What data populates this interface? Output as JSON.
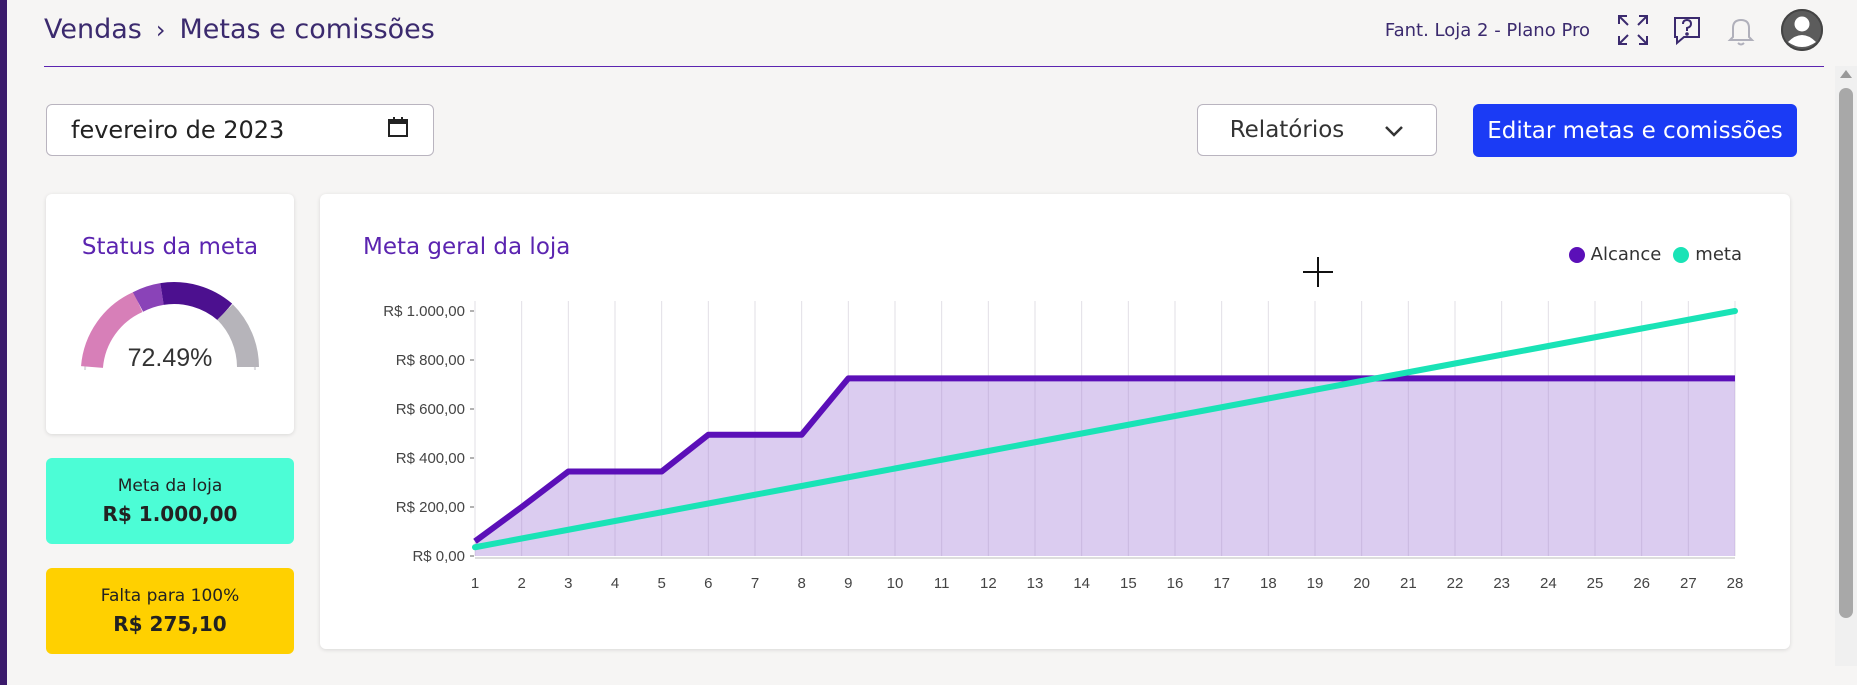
{
  "breadcrumb": {
    "parent": "Vendas",
    "separator": "›",
    "current": "Metas e comissões"
  },
  "header": {
    "store": "Fant. Loja 2 - Plano Pro",
    "icons": [
      "expand-icon",
      "help-icon",
      "bell-icon",
      "user-icon"
    ]
  },
  "toolbar": {
    "date_value": "fevereiro de 2023",
    "reports_label": "Relatórios",
    "edit_label": "Editar metas e comissões"
  },
  "status": {
    "title": "Status da meta",
    "percent_label": "72.49%",
    "percent": 72.49
  },
  "meta_loja": {
    "label": "Meta da loja",
    "value": "R$ 1.000,00"
  },
  "falta": {
    "label": "Falta para 100%",
    "value": "R$ 275,10"
  },
  "chart": {
    "title": "Meta geral da loja"
  },
  "colors": {
    "accent": "#5b24b0",
    "alcance": "#5b0fb8",
    "meta": "#19e3b6",
    "primary_button": "#1b3bf5",
    "meta_card": "#4cfdd6",
    "falta_card": "#ffd000"
  },
  "chart_data": {
    "type": "area",
    "title": "Meta geral da loja",
    "x": [
      1,
      2,
      3,
      4,
      5,
      6,
      7,
      8,
      9,
      10,
      11,
      12,
      13,
      14,
      15,
      16,
      17,
      18,
      19,
      20,
      21,
      22,
      23,
      24,
      25,
      26,
      27,
      28
    ],
    "y_tick_labels": [
      "R$ 0,00",
      "R$ 200,00",
      "R$ 400,00",
      "R$ 600,00",
      "R$ 800,00",
      "R$ 1.000,00"
    ],
    "y_ticks": [
      0,
      200,
      400,
      600,
      800,
      1000
    ],
    "ylim": [
      0,
      1000
    ],
    "grid_x": true,
    "legend_position": "top-right",
    "series": [
      {
        "name": "Alcance",
        "values": [
          60,
          200,
          345,
          345,
          345,
          495,
          495,
          495,
          725,
          725,
          725,
          725,
          725,
          725,
          725,
          725,
          725,
          725,
          725,
          725,
          725,
          725,
          725,
          725,
          725,
          725,
          725,
          725
        ]
      },
      {
        "name": "meta",
        "values": [
          35.7,
          71.4,
          107.1,
          142.9,
          178.6,
          214.3,
          250,
          285.7,
          321.4,
          357.1,
          392.9,
          428.6,
          464.3,
          500,
          535.7,
          571.4,
          607.1,
          642.9,
          678.6,
          714.3,
          750,
          785.7,
          821.4,
          857.1,
          892.9,
          928.6,
          964.3,
          1000
        ]
      }
    ]
  }
}
